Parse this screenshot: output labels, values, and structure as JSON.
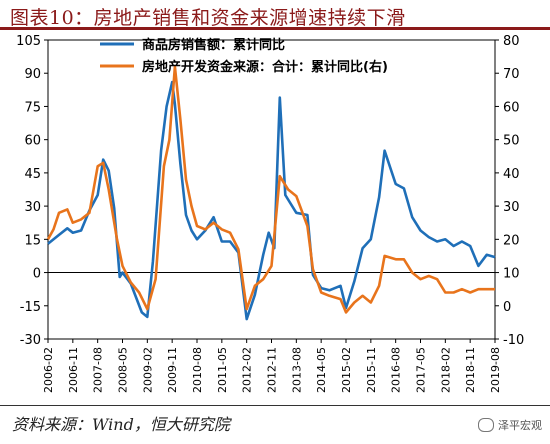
{
  "header": {
    "title": "图表10：房地产销售和资金来源增速持续下滑"
  },
  "footer": {
    "source": "资料来源：Wind，恒大研究院",
    "watermark": "泽平宏观"
  },
  "colors": {
    "sales": "#1f6fb8",
    "funding": "#e8741c",
    "title": "#8b1a1a"
  },
  "chart_data": {
    "type": "line",
    "title": "",
    "xlabel": "",
    "ylabel_left": "",
    "ylabel_right": "",
    "ylim_left": [
      -30,
      105
    ],
    "ylim_right": [
      -10,
      80
    ],
    "yticks_left": [
      "105",
      "90",
      "75",
      "60",
      "45",
      "30",
      "15",
      "0",
      "-15",
      "-30"
    ],
    "yticks_right": [
      "80",
      "70",
      "60",
      "50",
      "40",
      "30",
      "20",
      "10",
      "0",
      "-10"
    ],
    "xticks": [
      "2006-02",
      "2006-11",
      "2007-08",
      "2008-05",
      "2009-02",
      "2009-11",
      "2010-08",
      "2011-05",
      "2012-02",
      "2012-11",
      "2013-08",
      "2014-05",
      "2015-02",
      "2015-11",
      "2016-08",
      "2017-05",
      "2018-02",
      "2018-11",
      "2019-08"
    ],
    "legend_position": "top-left",
    "grid": false,
    "series": [
      {
        "name": "商品房销售额：累计同比",
        "axis": "left",
        "points": [
          [
            "2006-02",
            13
          ],
          [
            "2006-06",
            17
          ],
          [
            "2006-09",
            20
          ],
          [
            "2006-11",
            18
          ],
          [
            "2007-02",
            19
          ],
          [
            "2007-05",
            28
          ],
          [
            "2007-08",
            35
          ],
          [
            "2007-10",
            51
          ],
          [
            "2007-12",
            46
          ],
          [
            "2008-02",
            29
          ],
          [
            "2008-04",
            -2
          ],
          [
            "2008-05",
            0
          ],
          [
            "2008-08",
            -5
          ],
          [
            "2008-12",
            -18
          ],
          [
            "2009-02",
            -20
          ],
          [
            "2009-04",
            5
          ],
          [
            "2009-07",
            55
          ],
          [
            "2009-09",
            75
          ],
          [
            "2009-11",
            86
          ],
          [
            "2009-12",
            76
          ],
          [
            "2010-02",
            49
          ],
          [
            "2010-04",
            26
          ],
          [
            "2010-06",
            19
          ],
          [
            "2010-08",
            15
          ],
          [
            "2010-11",
            19
          ],
          [
            "2011-02",
            25
          ],
          [
            "2011-05",
            14
          ],
          [
            "2011-08",
            14
          ],
          [
            "2011-11",
            9
          ],
          [
            "2012-02",
            -21
          ],
          [
            "2012-05",
            -10
          ],
          [
            "2012-08",
            8
          ],
          [
            "2012-10",
            18
          ],
          [
            "2012-12",
            11
          ],
          [
            "2013-02",
            79
          ],
          [
            "2013-04",
            35
          ],
          [
            "2013-08",
            27
          ],
          [
            "2013-12",
            26
          ],
          [
            "2014-02",
            -1
          ],
          [
            "2014-05",
            -7
          ],
          [
            "2014-08",
            -8
          ],
          [
            "2014-12",
            -6
          ],
          [
            "2015-02",
            -16
          ],
          [
            "2015-05",
            -4
          ],
          [
            "2015-08",
            11
          ],
          [
            "2015-11",
            15
          ],
          [
            "2016-02",
            34
          ],
          [
            "2016-04",
            55
          ],
          [
            "2016-08",
            40
          ],
          [
            "2016-11",
            38
          ],
          [
            "2017-02",
            25
          ],
          [
            "2017-05",
            19
          ],
          [
            "2017-08",
            16
          ],
          [
            "2017-11",
            14
          ],
          [
            "2018-02",
            15
          ],
          [
            "2018-05",
            12
          ],
          [
            "2018-08",
            14
          ],
          [
            "2018-11",
            12
          ],
          [
            "2019-02",
            3
          ],
          [
            "2019-05",
            8
          ],
          [
            "2019-08",
            7
          ]
        ]
      },
      {
        "name": "房地产开发资金来源：合计：累计同比(右)",
        "axis": "right",
        "points": [
          [
            "2006-02",
            20
          ],
          [
            "2006-04",
            23
          ],
          [
            "2006-06",
            28
          ],
          [
            "2006-09",
            29
          ],
          [
            "2006-11",
            25
          ],
          [
            "2007-02",
            26
          ],
          [
            "2007-05",
            28
          ],
          [
            "2007-08",
            42
          ],
          [
            "2007-10",
            43
          ],
          [
            "2007-12",
            35
          ],
          [
            "2008-03",
            20
          ],
          [
            "2008-05",
            12
          ],
          [
            "2008-08",
            7
          ],
          [
            "2008-11",
            4
          ],
          [
            "2009-02",
            -1
          ],
          [
            "2009-05",
            8
          ],
          [
            "2009-08",
            42
          ],
          [
            "2009-10",
            50
          ],
          [
            "2009-12",
            72
          ],
          [
            "2010-02",
            56
          ],
          [
            "2010-04",
            38
          ],
          [
            "2010-06",
            30
          ],
          [
            "2010-08",
            24
          ],
          [
            "2010-11",
            23
          ],
          [
            "2011-02",
            25
          ],
          [
            "2011-05",
            23
          ],
          [
            "2011-08",
            22
          ],
          [
            "2011-11",
            17
          ],
          [
            "2012-02",
            -1
          ],
          [
            "2012-05",
            6
          ],
          [
            "2012-08",
            8
          ],
          [
            "2012-11",
            12
          ],
          [
            "2013-02",
            39
          ],
          [
            "2013-05",
            35
          ],
          [
            "2013-08",
            33
          ],
          [
            "2013-12",
            24
          ],
          [
            "2014-02",
            11
          ],
          [
            "2014-05",
            4
          ],
          [
            "2014-08",
            3
          ],
          [
            "2014-12",
            2
          ],
          [
            "2015-02",
            -2
          ],
          [
            "2015-05",
            1
          ],
          [
            "2015-08",
            3
          ],
          [
            "2015-11",
            1
          ],
          [
            "2016-02",
            6
          ],
          [
            "2016-04",
            15
          ],
          [
            "2016-08",
            14
          ],
          [
            "2016-11",
            14
          ],
          [
            "2017-02",
            10
          ],
          [
            "2017-05",
            8
          ],
          [
            "2017-08",
            9
          ],
          [
            "2017-11",
            8
          ],
          [
            "2018-02",
            4
          ],
          [
            "2018-05",
            4
          ],
          [
            "2018-08",
            5
          ],
          [
            "2018-11",
            4
          ],
          [
            "2019-02",
            5
          ],
          [
            "2019-05",
            5
          ],
          [
            "2019-08",
            5
          ]
        ]
      }
    ]
  }
}
